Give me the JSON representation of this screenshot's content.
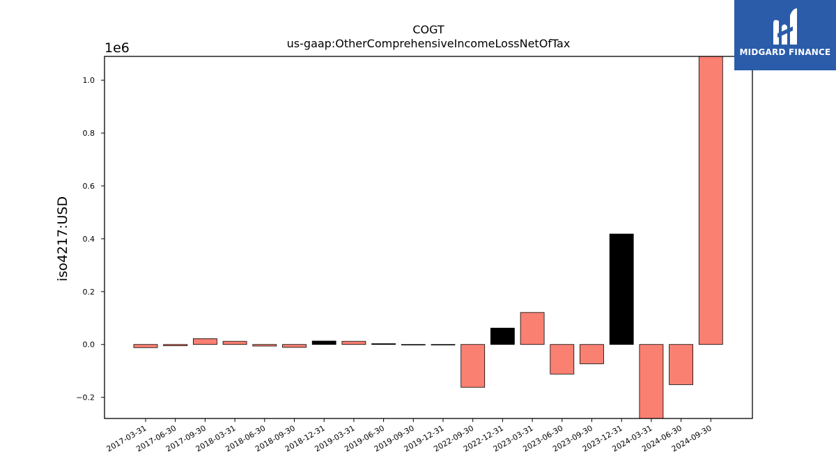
{
  "brand": {
    "name": "MIDGARD FINANCE",
    "color": "#2a5caa"
  },
  "chart_data": {
    "type": "bar",
    "title": "COGT",
    "subtitle": "us-gaap:OtherComprehensiveIncomeLossNetOfTax",
    "ylabel": "iso4217:USD",
    "y_offset_label": "1e6",
    "ylim": [
      -0.28,
      1.09
    ],
    "yticks": [
      -0.2,
      0.0,
      0.2,
      0.4,
      0.6,
      0.8,
      1.0
    ],
    "ytick_labels": [
      "−0.2",
      "0.0",
      "0.2",
      "0.4",
      "0.6",
      "0.8",
      "1.0"
    ],
    "categories": [
      "2017-03-31",
      "2017-06-30",
      "2017-09-30",
      "2018-03-31",
      "2018-06-30",
      "2018-09-30",
      "2018-12-31",
      "2019-03-31",
      "2019-06-30",
      "2019-09-30",
      "2019-12-31",
      "2022-09-30",
      "2022-12-31",
      "2023-03-31",
      "2023-06-30",
      "2023-09-30",
      "2023-12-31",
      "2024-03-31",
      "2024-06-30",
      "2024-09-30"
    ],
    "values": [
      -0.012,
      -0.005,
      0.022,
      0.012,
      -0.006,
      -0.011,
      0.013,
      0.012,
      0.003,
      -0.002,
      -0.002,
      -0.162,
      0.062,
      0.121,
      -0.112,
      -0.073,
      0.418,
      -0.29,
      -0.152,
      1.09
    ],
    "colors": [
      "salmon",
      "salmon",
      "salmon",
      "salmon",
      "salmon",
      "salmon",
      "black",
      "salmon",
      "black",
      "salmon",
      "salmon",
      "salmon",
      "black",
      "salmon",
      "salmon",
      "salmon",
      "black",
      "salmon",
      "salmon",
      "salmon"
    ],
    "palette": {
      "salmon": "#fa8072",
      "black": "#000000"
    },
    "grid": false,
    "legend": "none"
  }
}
